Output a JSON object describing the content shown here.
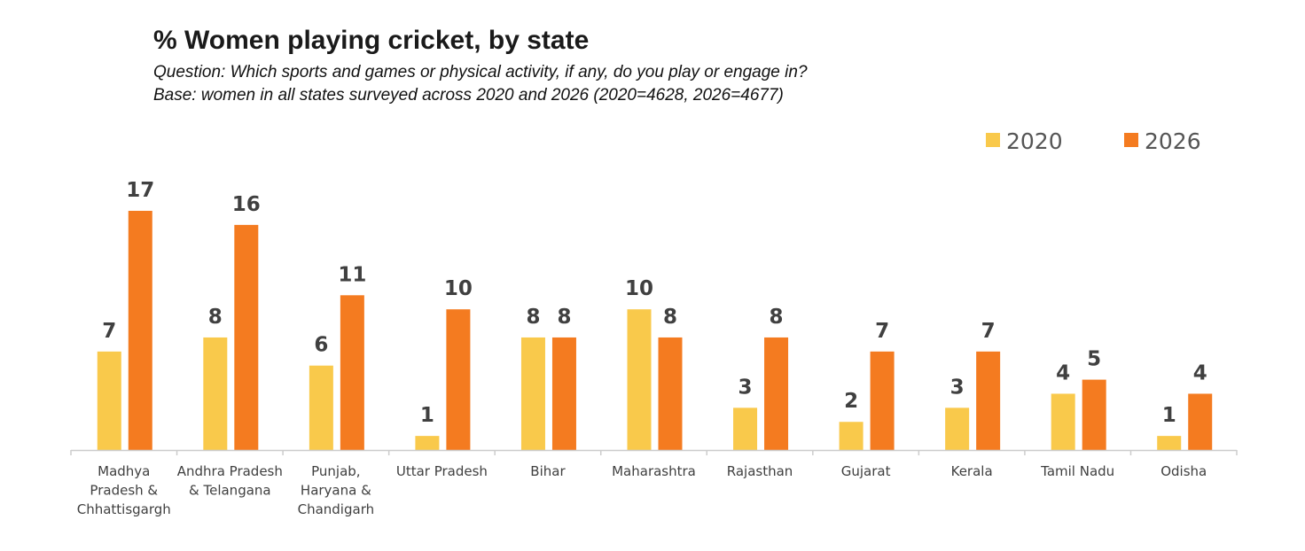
{
  "chart_data": {
    "type": "bar",
    "title": "% Women playing cricket, by state",
    "subtitle": [
      "Question: Which sports and games or physical activity, if any, do you play or engage in?",
      "Base: women in all states surveyed across 2020 and 2026 (2020=4628, 2026=4677)"
    ],
    "categories": [
      [
        "Madhya",
        "Pradesh &",
        "Chhattisgargh"
      ],
      [
        "Andhra Pradesh",
        "& Telangana"
      ],
      [
        "Punjab,",
        "Haryana &",
        "Chandigarh"
      ],
      [
        "Uttar Pradesh"
      ],
      [
        "Bihar"
      ],
      [
        "Maharashtra"
      ],
      [
        "Rajasthan"
      ],
      [
        "Gujarat"
      ],
      [
        "Kerala"
      ],
      [
        "Tamil Nadu"
      ],
      [
        "Odisha"
      ]
    ],
    "series": [
      {
        "name": "2020",
        "color": "#F9C94B",
        "values": [
          7,
          8,
          6,
          1,
          8,
          10,
          3,
          2,
          3,
          4,
          1
        ]
      },
      {
        "name": "2026",
        "color": "#F47B20",
        "values": [
          17,
          16,
          11,
          10,
          8,
          8,
          8,
          7,
          7,
          5,
          4
        ]
      }
    ],
    "ylim": [
      0,
      17
    ],
    "grid": false,
    "legend": "top-right",
    "data_labels": true
  }
}
